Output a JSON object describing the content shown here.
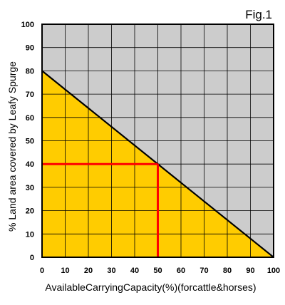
{
  "figure_label": "Fig.1",
  "chart_data": {
    "type": "area",
    "title": "",
    "xlabel": "AvailableCarryingCapacity(%)(forcattle&horses)",
    "ylabel": "% Land area covered by Leafy Spurge",
    "xlim": [
      0,
      100
    ],
    "ylim": [
      0,
      100
    ],
    "x_ticks": [
      "0",
      "10",
      "20",
      "30",
      "40",
      "50",
      "60",
      "70",
      "80",
      "90",
      "100"
    ],
    "y_ticks": [
      "0",
      "10",
      "20",
      "30",
      "40",
      "50",
      "60",
      "70",
      "80",
      "90",
      "100"
    ],
    "grid": true,
    "series": [
      {
        "x": [
          0,
          100
        ],
        "y": [
          80,
          0
        ]
      }
    ],
    "highlight": {
      "x": 50,
      "y": 40
    },
    "colors": {
      "background": "#cccccc",
      "fill": "#ffcc00",
      "line": "#000000",
      "highlight": "#ff0000",
      "grid": "#000000"
    }
  }
}
